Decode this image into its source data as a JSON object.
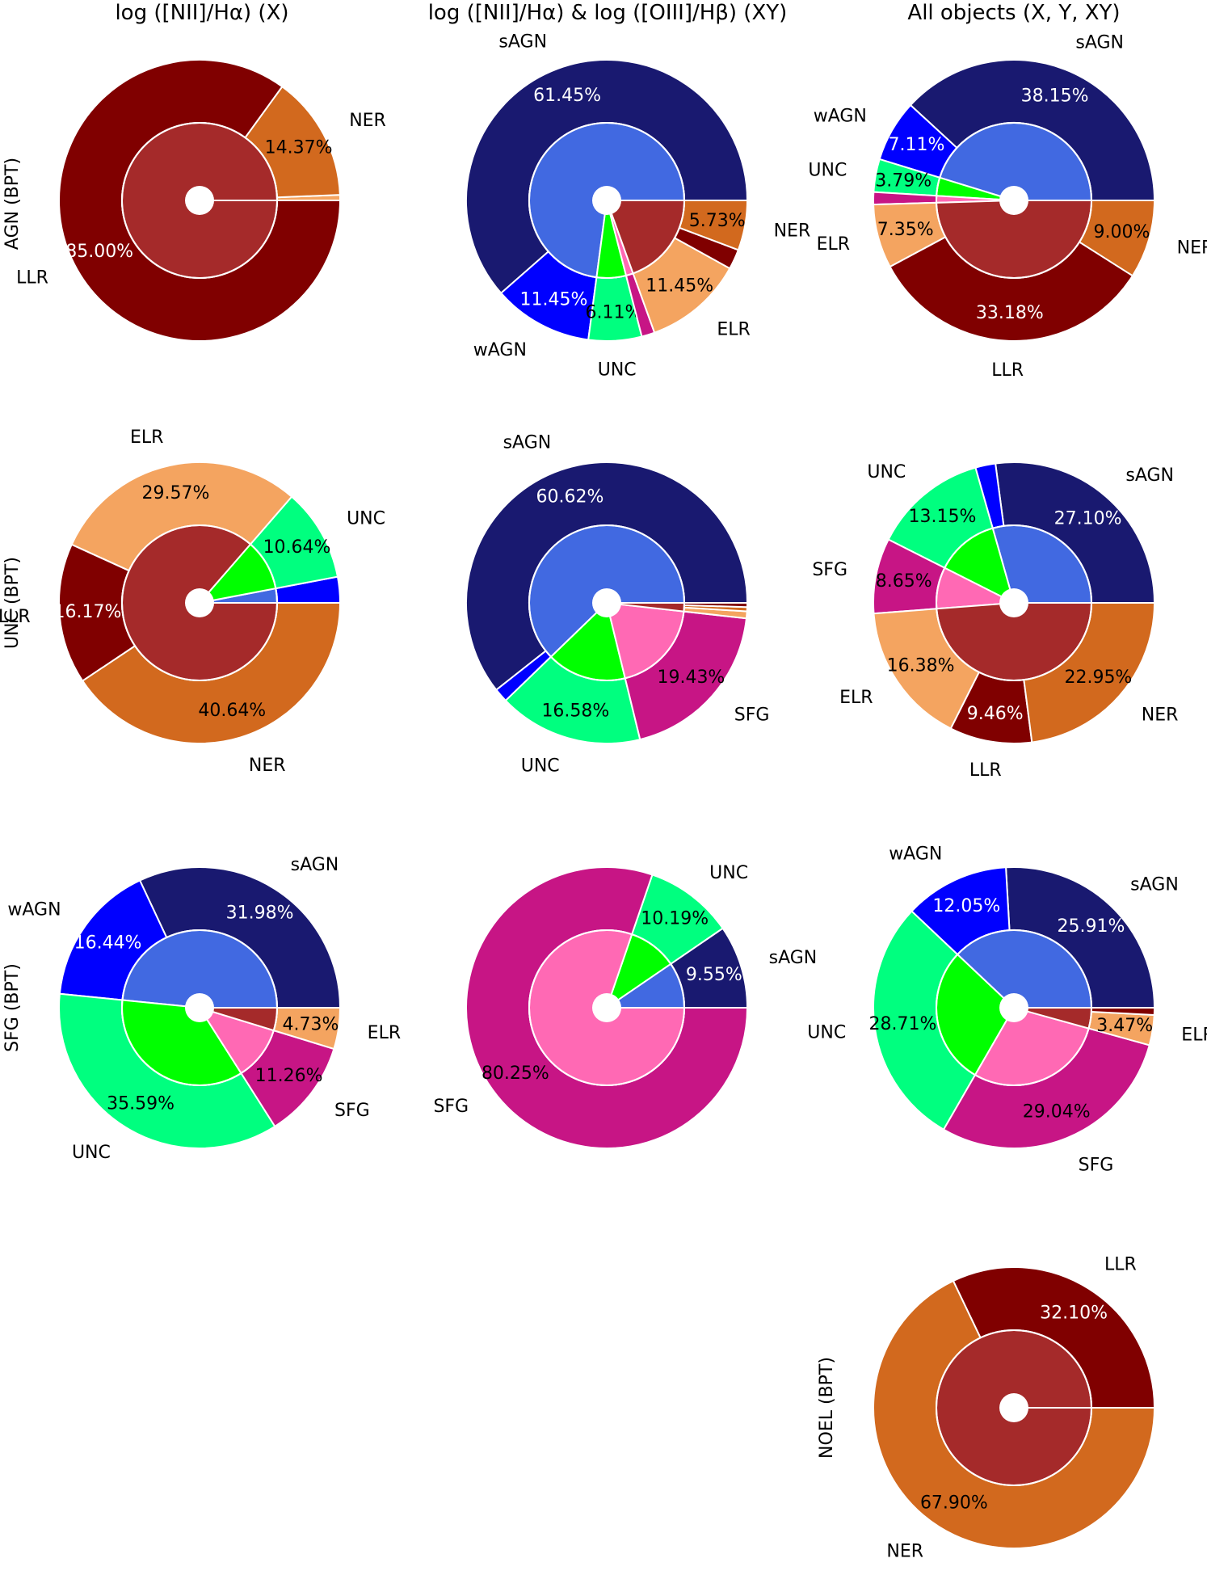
{
  "colors": {
    "sAGN": "#191970",
    "wAGN": "#0000ff",
    "UNC": "#00ff7f",
    "SFG": "#c71585",
    "ELR": "#f4a460",
    "LLR": "#800000",
    "NER": "#d2691e",
    "inner_AGN": "#4169e1",
    "inner_UNC": "#00ff00",
    "inner_SFG": "#ff69b4",
    "inner_RET": "#a52a2a"
  },
  "column_titles": [
    "log ([NII]/Hα) (X)",
    "log ([NII]/Hα) & log ([OIII]/Hβ) (XY)",
    "All objects (X, Y, XY)"
  ],
  "row_labels": [
    "AGN (BPT)",
    "UNC (BPT)",
    "SFG (BPT)",
    "NOEL (BPT)"
  ],
  "chart_data": [
    {
      "id": "agn-x",
      "type": "pie",
      "row": 0,
      "col": 0,
      "outer": [
        {
          "cat": "ELR",
          "value": 0.63,
          "label": "",
          "pct": ""
        },
        {
          "cat": "NER",
          "value": 14.37,
          "label": "NER",
          "pct": "14.37%"
        },
        {
          "cat": "LLR",
          "value": 85.0,
          "label": "LLR",
          "pct": "85.00%"
        }
      ],
      "inner": [
        {
          "cat": "inner_RET",
          "value": 100
        }
      ]
    },
    {
      "id": "agn-xy",
      "type": "pie",
      "row": 0,
      "col": 1,
      "outer": [
        {
          "cat": "sAGN",
          "value": 61.45,
          "label": "sAGN",
          "pct": "61.45%"
        },
        {
          "cat": "wAGN",
          "value": 11.45,
          "label": "wAGN",
          "pct": "11.45%"
        },
        {
          "cat": "UNC",
          "value": 6.11,
          "label": "UNC",
          "pct": "6.11%"
        },
        {
          "cat": "SFG",
          "value": 1.5,
          "label": "",
          "pct": ""
        },
        {
          "cat": "ELR",
          "value": 11.45,
          "label": "ELR",
          "pct": "11.45%"
        },
        {
          "cat": "LLR",
          "value": 2.3,
          "label": "",
          "pct": ""
        },
        {
          "cat": "NER",
          "value": 5.73,
          "label": "NER",
          "pct": "5.73%"
        }
      ],
      "inner": [
        {
          "cat": "inner_AGN",
          "value": 72.9
        },
        {
          "cat": "inner_UNC",
          "value": 6.11
        },
        {
          "cat": "inner_SFG",
          "value": 1.5
        },
        {
          "cat": "inner_RET",
          "value": 19.48
        }
      ]
    },
    {
      "id": "agn-all",
      "type": "pie",
      "row": 0,
      "col": 2,
      "outer": [
        {
          "cat": "sAGN",
          "value": 38.15,
          "label": "sAGN",
          "pct": "38.15%"
        },
        {
          "cat": "wAGN",
          "value": 7.11,
          "label": "wAGN",
          "pct": "7.11%"
        },
        {
          "cat": "UNC",
          "value": 3.79,
          "label": "UNC",
          "pct": "3.79%"
        },
        {
          "cat": "SFG",
          "value": 1.42,
          "label": "",
          "pct": ""
        },
        {
          "cat": "ELR",
          "value": 7.35,
          "label": "ELR",
          "pct": "7.35%"
        },
        {
          "cat": "LLR",
          "value": 33.18,
          "label": "LLR",
          "pct": "33.18%"
        },
        {
          "cat": "NER",
          "value": 9.0,
          "label": "NER",
          "pct": "9.00%"
        }
      ],
      "inner": [
        {
          "cat": "inner_AGN",
          "value": 45.26
        },
        {
          "cat": "inner_UNC",
          "value": 3.79
        },
        {
          "cat": "inner_SFG",
          "value": 1.42
        },
        {
          "cat": "inner_RET",
          "value": 49.53
        }
      ]
    },
    {
      "id": "unc-x",
      "type": "pie",
      "row": 1,
      "col": 0,
      "outer": [
        {
          "cat": "wAGN",
          "value": 2.98,
          "label": "",
          "pct": ""
        },
        {
          "cat": "UNC",
          "value": 10.64,
          "label": "UNC",
          "pct": "10.64%"
        },
        {
          "cat": "ELR",
          "value": 29.57,
          "label": "ELR",
          "pct": "29.57%"
        },
        {
          "cat": "LLR",
          "value": 16.17,
          "label": "LLR",
          "pct": "16.17%"
        },
        {
          "cat": "NER",
          "value": 40.64,
          "label": "NER",
          "pct": "40.64%"
        }
      ],
      "inner": [
        {
          "cat": "inner_AGN",
          "value": 2.98
        },
        {
          "cat": "inner_UNC",
          "value": 10.64
        },
        {
          "cat": "inner_RET",
          "value": 86.38
        }
      ]
    },
    {
      "id": "unc-xy",
      "type": "pie",
      "row": 1,
      "col": 1,
      "outer": [
        {
          "cat": "sAGN",
          "value": 60.62,
          "label": "sAGN",
          "pct": "60.62%"
        },
        {
          "cat": "wAGN",
          "value": 1.61,
          "label": "",
          "pct": ""
        },
        {
          "cat": "UNC",
          "value": 16.58,
          "label": "UNC",
          "pct": "16.58%"
        },
        {
          "cat": "SFG",
          "value": 19.43,
          "label": "SFG",
          "pct": "19.43%"
        },
        {
          "cat": "ELR",
          "value": 0.8,
          "label": "",
          "pct": ""
        },
        {
          "cat": "NER",
          "value": 0.48,
          "label": "",
          "pct": ""
        },
        {
          "cat": "LLR",
          "value": 0.48,
          "label": "",
          "pct": ""
        }
      ],
      "inner": [
        {
          "cat": "inner_AGN",
          "value": 62.23
        },
        {
          "cat": "inner_UNC",
          "value": 16.58
        },
        {
          "cat": "inner_SFG",
          "value": 19.43
        },
        {
          "cat": "inner_RET",
          "value": 1.76
        }
      ]
    },
    {
      "id": "unc-all",
      "type": "pie",
      "row": 1,
      "col": 2,
      "outer": [
        {
          "cat": "sAGN",
          "value": 27.1,
          "label": "sAGN",
          "pct": "27.10%"
        },
        {
          "cat": "wAGN",
          "value": 2.31,
          "label": "",
          "pct": ""
        },
        {
          "cat": "UNC",
          "value": 13.15,
          "label": "UNC",
          "pct": "13.15%"
        },
        {
          "cat": "SFG",
          "value": 8.65,
          "label": "SFG",
          "pct": "8.65%"
        },
        {
          "cat": "ELR",
          "value": 16.38,
          "label": "ELR",
          "pct": "16.38%"
        },
        {
          "cat": "LLR",
          "value": 9.46,
          "label": "LLR",
          "pct": "9.46%"
        },
        {
          "cat": "NER",
          "value": 22.95,
          "label": "NER",
          "pct": "22.95%"
        }
      ],
      "inner": [
        {
          "cat": "inner_AGN",
          "value": 29.41
        },
        {
          "cat": "inner_UNC",
          "value": 13.15
        },
        {
          "cat": "inner_SFG",
          "value": 8.65
        },
        {
          "cat": "inner_RET",
          "value": 48.79
        }
      ]
    },
    {
      "id": "sfg-x",
      "type": "pie",
      "row": 2,
      "col": 0,
      "outer": [
        {
          "cat": "sAGN",
          "value": 31.98,
          "label": "sAGN",
          "pct": "31.98%"
        },
        {
          "cat": "wAGN",
          "value": 16.44,
          "label": "wAGN",
          "pct": "16.44%"
        },
        {
          "cat": "UNC",
          "value": 35.59,
          "label": "UNC",
          "pct": "35.59%"
        },
        {
          "cat": "SFG",
          "value": 11.26,
          "label": "SFG",
          "pct": "11.26%"
        },
        {
          "cat": "ELR",
          "value": 4.73,
          "label": "ELR",
          "pct": "4.73%"
        }
      ],
      "inner": [
        {
          "cat": "inner_AGN",
          "value": 48.42
        },
        {
          "cat": "inner_UNC",
          "value": 35.59
        },
        {
          "cat": "inner_SFG",
          "value": 11.26
        },
        {
          "cat": "inner_RET",
          "value": 4.73
        }
      ]
    },
    {
      "id": "sfg-xy",
      "type": "pie",
      "row": 2,
      "col": 1,
      "outer": [
        {
          "cat": "sAGN",
          "value": 9.55,
          "label": "sAGN",
          "pct": "9.55%"
        },
        {
          "cat": "UNC",
          "value": 10.19,
          "label": "UNC",
          "pct": "10.19%"
        },
        {
          "cat": "SFG",
          "value": 80.25,
          "label": "SFG",
          "pct": "80.25%"
        }
      ],
      "inner": [
        {
          "cat": "inner_AGN",
          "value": 9.55
        },
        {
          "cat": "inner_UNC",
          "value": 10.19
        },
        {
          "cat": "inner_SFG",
          "value": 80.25
        }
      ]
    },
    {
      "id": "sfg-all",
      "type": "pie",
      "row": 2,
      "col": 2,
      "outer": [
        {
          "cat": "sAGN",
          "value": 25.91,
          "label": "sAGN",
          "pct": "25.91%"
        },
        {
          "cat": "wAGN",
          "value": 12.05,
          "label": "wAGN",
          "pct": "12.05%"
        },
        {
          "cat": "UNC",
          "value": 28.71,
          "label": "UNC",
          "pct": "28.71%"
        },
        {
          "cat": "SFG",
          "value": 29.04,
          "label": "SFG",
          "pct": "29.04%"
        },
        {
          "cat": "ELR",
          "value": 3.47,
          "label": "ELR",
          "pct": "3.47%"
        },
        {
          "cat": "LLR",
          "value": 0.82,
          "label": "",
          "pct": ""
        }
      ],
      "inner": [
        {
          "cat": "inner_AGN",
          "value": 37.96
        },
        {
          "cat": "inner_UNC",
          "value": 28.71
        },
        {
          "cat": "inner_SFG",
          "value": 29.04
        },
        {
          "cat": "inner_RET",
          "value": 4.29
        }
      ]
    },
    {
      "id": "noel-all",
      "type": "pie",
      "row": 3,
      "col": 2,
      "outer": [
        {
          "cat": "LLR",
          "value": 32.1,
          "label": "LLR",
          "pct": "32.10%"
        },
        {
          "cat": "NER",
          "value": 67.9,
          "label": "NER",
          "pct": "67.90%"
        }
      ],
      "inner": [
        {
          "cat": "inner_RET",
          "value": 100
        }
      ]
    }
  ]
}
